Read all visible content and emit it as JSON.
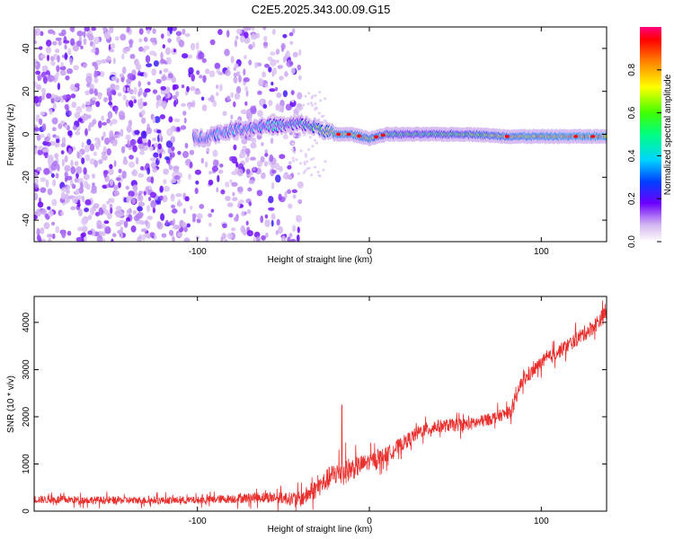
{
  "title": "C2E5.2025.343.00.09.G15",
  "chart_data": [
    {
      "type": "heatmap",
      "xlabel": "Height of straight line (km)",
      "ylabel": "Frequency (Hz)",
      "xlim": [
        -195,
        138
      ],
      "ylim": [
        -50,
        50
      ],
      "xticks": [
        -100,
        0,
        100
      ],
      "yticks": [
        -40,
        -20,
        0,
        20,
        40
      ],
      "colorbar": {
        "label": "Normalized spectral amplitude",
        "range": [
          0,
          1
        ],
        "ticks": [
          0.0,
          0.2,
          0.4,
          0.6,
          0.8
        ]
      },
      "ridge": {
        "description_points": [
          {
            "x": -100,
            "y": -2
          },
          {
            "x": -90,
            "y": 0
          },
          {
            "x": -80,
            "y": 2
          },
          {
            "x": -70,
            "y": 3
          },
          {
            "x": -60,
            "y": 4
          },
          {
            "x": -50,
            "y": 4
          },
          {
            "x": -40,
            "y": 5
          },
          {
            "x": -30,
            "y": 3
          },
          {
            "x": -20,
            "y": 0
          },
          {
            "x": -10,
            "y": 0
          },
          {
            "x": 0,
            "y": -2
          },
          {
            "x": 10,
            "y": 0
          },
          {
            "x": 20,
            "y": 0
          },
          {
            "x": 40,
            "y": 0
          },
          {
            "x": 60,
            "y": 0
          },
          {
            "x": 80,
            "y": -1
          },
          {
            "x": 100,
            "y": -1
          },
          {
            "x": 120,
            "y": -1
          },
          {
            "x": 138,
            "y": -1
          }
        ],
        "amplitude": [
          {
            "x": -100,
            "a": 0.35
          },
          {
            "x": -60,
            "a": 0.45
          },
          {
            "x": -40,
            "a": 0.5
          },
          {
            "x": -20,
            "a": 0.9
          },
          {
            "x": 0,
            "a": 0.85
          },
          {
            "x": 20,
            "a": 0.6
          },
          {
            "x": 40,
            "a": 0.65
          },
          {
            "x": 60,
            "a": 0.7
          },
          {
            "x": 80,
            "a": 0.85
          },
          {
            "x": 100,
            "a": 0.9
          },
          {
            "x": 120,
            "a": 0.95
          },
          {
            "x": 138,
            "a": 0.95
          }
        ]
      },
      "noise_x_max": -45
    },
    {
      "type": "line",
      "xlabel": "Height of straight line (km)",
      "ylabel": "SNR (10 * v/v)",
      "xlim": [
        -195,
        138
      ],
      "ylim": [
        0,
        4550
      ],
      "xticks": [
        -100,
        0,
        100
      ],
      "yticks": [
        0,
        1000,
        2000,
        3000,
        4000
      ],
      "series": [
        {
          "color": "#e8312f",
          "trend": [
            {
              "x": -195,
              "y": 250
            },
            {
              "x": -150,
              "y": 230
            },
            {
              "x": -100,
              "y": 230
            },
            {
              "x": -60,
              "y": 300
            },
            {
              "x": -40,
              "y": 250
            },
            {
              "x": -30,
              "y": 500
            },
            {
              "x": -20,
              "y": 800
            },
            {
              "x": -10,
              "y": 900
            },
            {
              "x": 0,
              "y": 1050
            },
            {
              "x": 10,
              "y": 1200
            },
            {
              "x": 20,
              "y": 1450
            },
            {
              "x": 30,
              "y": 1700
            },
            {
              "x": 40,
              "y": 1800
            },
            {
              "x": 60,
              "y": 1850
            },
            {
              "x": 70,
              "y": 1950
            },
            {
              "x": 82,
              "y": 2100
            },
            {
              "x": 84,
              "y": 2200
            },
            {
              "x": 88,
              "y": 2700
            },
            {
              "x": 100,
              "y": 3150
            },
            {
              "x": 115,
              "y": 3500
            },
            {
              "x": 130,
              "y": 3900
            },
            {
              "x": 138,
              "y": 4200
            }
          ],
          "noise": [
            {
              "x": -195,
              "n": 120
            },
            {
              "x": -100,
              "n": 110
            },
            {
              "x": -50,
              "n": 180
            },
            {
              "x": -30,
              "n": 300
            },
            {
              "x": -15,
              "n": 400
            },
            {
              "x": 0,
              "n": 250
            },
            {
              "x": 40,
              "n": 200
            },
            {
              "x": 80,
              "n": 180
            },
            {
              "x": 138,
              "n": 250
            }
          ],
          "spike": {
            "x": -16,
            "y": 2250
          }
        }
      ]
    }
  ]
}
